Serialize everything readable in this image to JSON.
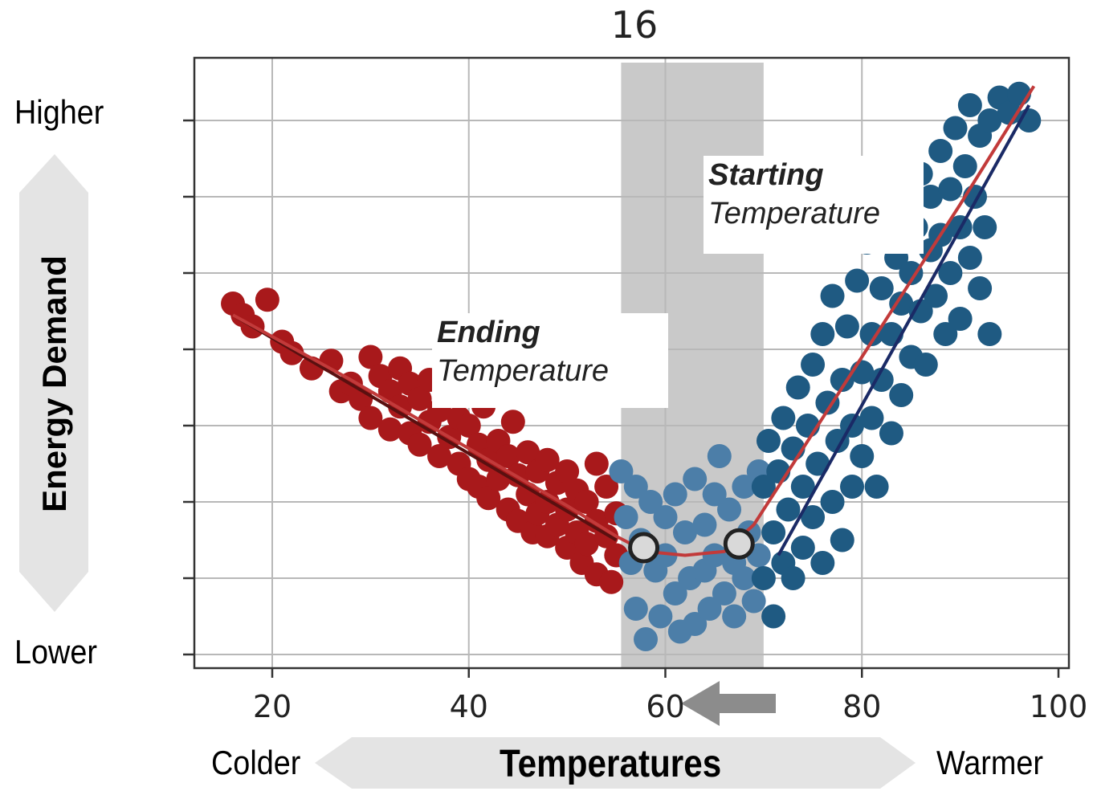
{
  "chart_data": {
    "type": "scatter",
    "title": "16",
    "xlim": [
      12,
      101
    ],
    "ylim": [
      0,
      7
    ],
    "x_ticks": [
      "20",
      "40",
      "60",
      "80",
      "100"
    ],
    "x_tick_values": [
      20,
      40,
      60,
      80,
      100
    ],
    "y_tick_values": [
      0,
      1,
      2,
      3,
      4,
      5,
      6,
      7
    ],
    "grid": true,
    "shaded_band": [
      55.5,
      70
    ],
    "ylabel": "Energy Demand",
    "y_high_label": "Higher",
    "y_low_label": "Lower",
    "xlabel": "Temperatures",
    "x_cold_label": "Colder",
    "x_warm_label": "Warmer",
    "annotations": {
      "ending": {
        "bold": "Ending",
        "text": "Temperature"
      },
      "starting": {
        "bold": "Starting",
        "text": "Temperature"
      }
    },
    "change_points": [
      {
        "x": 57.8,
        "y": 1.4
      },
      {
        "x": 67.5,
        "y": 1.45
      }
    ],
    "series": [
      {
        "color": "#a8191b",
        "points": [
          [
            16,
            4.6
          ],
          [
            17,
            4.45
          ],
          [
            18,
            4.3
          ],
          [
            19.5,
            4.65
          ],
          [
            21,
            4.1
          ],
          [
            22,
            3.95
          ],
          [
            24,
            3.75
          ],
          [
            26,
            3.85
          ],
          [
            27,
            3.45
          ],
          [
            28,
            3.55
          ],
          [
            29,
            3.35
          ],
          [
            30,
            3.9
          ],
          [
            30,
            3.1
          ],
          [
            31,
            3.65
          ],
          [
            32,
            3.45
          ],
          [
            32,
            2.95
          ],
          [
            33,
            3.75
          ],
          [
            33,
            3.25
          ],
          [
            34,
            3.55
          ],
          [
            34,
            2.9
          ],
          [
            35,
            3.35
          ],
          [
            35,
            2.75
          ],
          [
            36,
            3.6
          ],
          [
            36,
            3.05
          ],
          [
            37,
            3.2
          ],
          [
            37,
            2.6
          ],
          [
            38,
            3.4
          ],
          [
            38,
            2.85
          ],
          [
            39,
            3.1
          ],
          [
            39,
            2.5
          ],
          [
            40,
            3.0
          ],
          [
            40,
            2.3
          ],
          [
            41,
            2.75
          ],
          [
            41,
            2.2
          ],
          [
            41.5,
            3.25
          ],
          [
            42,
            2.55
          ],
          [
            42,
            2.05
          ],
          [
            43,
            2.8
          ],
          [
            43,
            2.3
          ],
          [
            44,
            2.6
          ],
          [
            44,
            1.9
          ],
          [
            44.5,
            3.05
          ],
          [
            45,
            2.35
          ],
          [
            45,
            1.75
          ],
          [
            46,
            2.65
          ],
          [
            46,
            2.1
          ],
          [
            46.5,
            1.6
          ],
          [
            47,
            2.4
          ],
          [
            47,
            1.85
          ],
          [
            48,
            2.55
          ],
          [
            48,
            2.0
          ],
          [
            48,
            1.55
          ],
          [
            49,
            2.25
          ],
          [
            49,
            1.7
          ],
          [
            50,
            2.4
          ],
          [
            50,
            1.9
          ],
          [
            50,
            1.4
          ],
          [
            51,
            2.15
          ],
          [
            51,
            1.6
          ],
          [
            51.5,
            1.2
          ],
          [
            52,
            2.0
          ],
          [
            52,
            1.45
          ],
          [
            53,
            2.5
          ],
          [
            53,
            1.75
          ],
          [
            53,
            1.05
          ],
          [
            54,
            2.2
          ],
          [
            54,
            1.55
          ],
          [
            54.5,
            0.95
          ],
          [
            55,
            1.85
          ],
          [
            55,
            1.3
          ]
        ]
      },
      {
        "color": "#4c7ea8",
        "points": [
          [
            55.5,
            2.4
          ],
          [
            56,
            1.8
          ],
          [
            56.5,
            1.2
          ],
          [
            57,
            2.2
          ],
          [
            57,
            0.6
          ],
          [
            57.5,
            1.5
          ],
          [
            58,
            0.2
          ],
          [
            58.5,
            2.0
          ],
          [
            59,
            1.1
          ],
          [
            59.5,
            0.5
          ],
          [
            60,
            1.8
          ],
          [
            60,
            1.3
          ],
          [
            61,
            2.1
          ],
          [
            61,
            0.8
          ],
          [
            61.5,
            0.3
          ],
          [
            62,
            1.6
          ],
          [
            62.5,
            1.0
          ],
          [
            63,
            2.3
          ],
          [
            63,
            0.4
          ],
          [
            64,
            1.7
          ],
          [
            64,
            1.1
          ],
          [
            64.5,
            0.6
          ],
          [
            65,
            2.1
          ],
          [
            65,
            1.3
          ],
          [
            65.5,
            2.6
          ],
          [
            66,
            0.8
          ],
          [
            66.5,
            1.9
          ],
          [
            67,
            1.2
          ],
          [
            67,
            0.5
          ],
          [
            68,
            2.2
          ],
          [
            68,
            1.0
          ],
          [
            68.5,
            1.6
          ],
          [
            69,
            0.7
          ],
          [
            69.5,
            2.4
          ],
          [
            69.5,
            1.3
          ]
        ]
      },
      {
        "color": "#1f5a82",
        "points": [
          [
            70,
            2.2
          ],
          [
            70,
            1.0
          ],
          [
            70.5,
            2.8
          ],
          [
            71,
            1.6
          ],
          [
            71,
            0.5
          ],
          [
            71.5,
            2.4
          ],
          [
            72,
            1.2
          ],
          [
            72,
            3.1
          ],
          [
            72.5,
            1.9
          ],
          [
            73,
            2.7
          ],
          [
            73,
            1.0
          ],
          [
            73.5,
            3.5
          ],
          [
            74,
            2.2
          ],
          [
            74,
            1.4
          ],
          [
            74.5,
            3.0
          ],
          [
            75,
            3.8
          ],
          [
            75,
            1.8
          ],
          [
            75.5,
            2.5
          ],
          [
            76,
            4.2
          ],
          [
            76,
            1.2
          ],
          [
            76.5,
            3.3
          ],
          [
            77,
            2.0
          ],
          [
            77,
            4.7
          ],
          [
            77.5,
            2.8
          ],
          [
            78,
            3.6
          ],
          [
            78,
            1.5
          ],
          [
            78.5,
            4.3
          ],
          [
            79,
            3.0
          ],
          [
            79,
            2.2
          ],
          [
            79.5,
            4.9
          ],
          [
            80,
            3.7
          ],
          [
            80,
            2.6
          ],
          [
            80.5,
            5.4
          ],
          [
            81,
            4.2
          ],
          [
            81,
            3.1
          ],
          [
            81.5,
            2.2
          ],
          [
            82,
            4.8
          ],
          [
            82,
            3.6
          ],
          [
            82.5,
            5.7
          ],
          [
            83,
            4.2
          ],
          [
            83,
            2.9
          ],
          [
            83.5,
            5.2
          ],
          [
            84,
            4.6
          ],
          [
            84,
            3.4
          ],
          [
            84.5,
            6.0
          ],
          [
            85,
            5.0
          ],
          [
            85,
            3.9
          ],
          [
            85.5,
            5.6
          ],
          [
            86,
            4.5
          ],
          [
            86,
            6.3
          ],
          [
            86.5,
            3.8
          ],
          [
            87,
            5.3
          ],
          [
            87,
            6.0
          ],
          [
            87.5,
            4.7
          ],
          [
            88,
            6.6
          ],
          [
            88,
            5.5
          ],
          [
            88.5,
            4.2
          ],
          [
            89,
            6.1
          ],
          [
            89,
            5.0
          ],
          [
            89.5,
            6.9
          ],
          [
            90,
            5.6
          ],
          [
            90,
            4.4
          ],
          [
            90.5,
            6.4
          ],
          [
            91,
            5.2
          ],
          [
            91,
            7.2
          ],
          [
            91.5,
            6.0
          ],
          [
            92,
            6.8
          ],
          [
            92,
            4.8
          ],
          [
            92.5,
            5.6
          ],
          [
            93,
            7.0
          ],
          [
            93,
            4.2
          ],
          [
            94,
            7.3
          ],
          [
            95,
            7.1
          ],
          [
            96,
            7.35
          ],
          [
            97,
            7.0
          ]
        ]
      }
    ],
    "fit_lines": [
      {
        "color": "#5a1010",
        "x": [
          16,
          55
        ],
        "y": [
          4.45,
          1.5
        ]
      },
      {
        "color": "#1a2a66",
        "x": [
          71.5,
          97
        ],
        "y": [
          1.3,
          7.2
        ]
      },
      {
        "color": "#c23a3a",
        "x": [
          16,
          28,
          40,
          50,
          55,
          58,
          62,
          66,
          69,
          72,
          80,
          90,
          97.5
        ],
        "y": [
          4.45,
          3.6,
          2.7,
          1.95,
          1.55,
          1.35,
          1.3,
          1.35,
          1.7,
          2.3,
          3.9,
          5.9,
          7.45
        ]
      }
    ]
  }
}
